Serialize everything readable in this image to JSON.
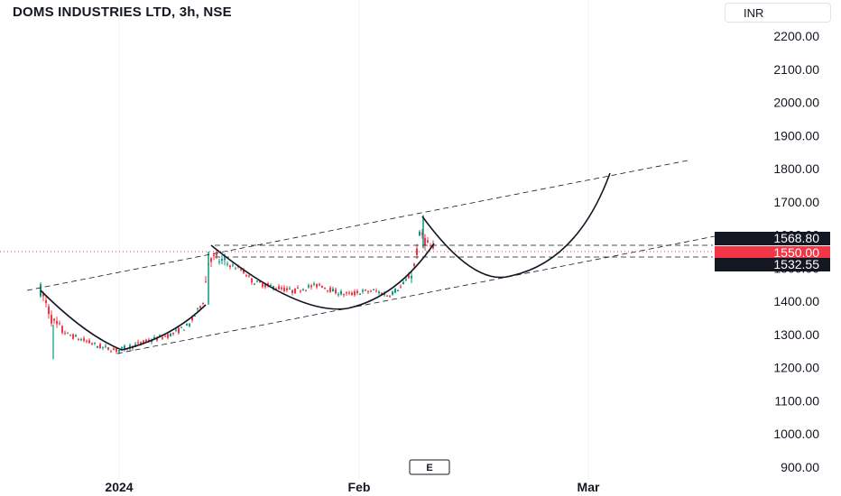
{
  "header": {
    "title": "DOMS INDUSTRIES LTD, 3h, NSE",
    "currency": "INR"
  },
  "chart_data": {
    "type": "candlestick",
    "title": "DOMS INDUSTRIES LTD, 3h, NSE",
    "y_ticks": [
      "900.00",
      "1000.00",
      "1100.00",
      "1200.00",
      "1300.00",
      "1400.00",
      "1500.00",
      "1600.00",
      "1700.00",
      "1800.00",
      "1900.00",
      "2000.00",
      "2100.00",
      "2200.00"
    ],
    "x_ticks": [
      "2024",
      "Feb",
      "Mar"
    ],
    "ylim": [
      880,
      2240
    ],
    "grid": true,
    "event_marker": "E",
    "price_labels": [
      {
        "value": "1568.80",
        "color": "#131722"
      },
      {
        "value": "1550.00",
        "color": "#f23645"
      },
      {
        "value": "1532.55",
        "color": "#131722"
      }
    ],
    "colors": {
      "up": "#089981",
      "down": "#f23645",
      "line": "#131722"
    }
  }
}
